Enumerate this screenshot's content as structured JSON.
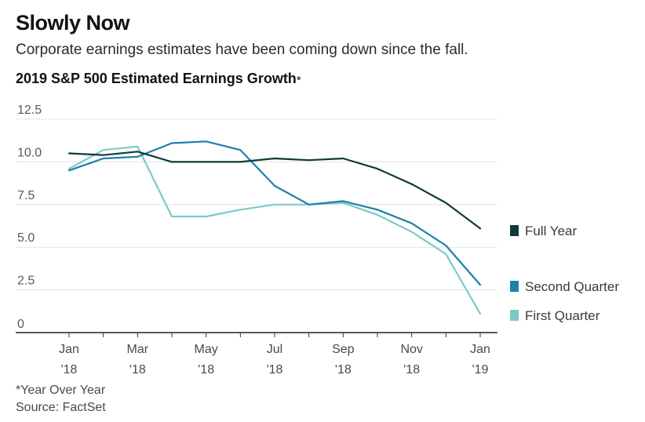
{
  "header": {
    "title": "Slowly Now",
    "subtitle": "Corporate earnings estimates have been coming down since the fall.",
    "chart_title": "2019 S&P 500 Estimated Earnings Growth",
    "chart_title_marker": "*"
  },
  "footer": {
    "note": "*Year Over Year",
    "source": "Source: FactSet"
  },
  "colors": {
    "full_year": "#0f3a3a",
    "second_quarter": "#1b82a8",
    "first_quarter": "#7ccac8"
  },
  "chart_data": {
    "type": "line",
    "title": "2019 S&P 500 Estimated Earnings Growth*",
    "xlabel": "",
    "ylabel": "",
    "ylim": [
      0,
      12.5
    ],
    "yticks": [
      {
        "value": 12.5,
        "label": "12.5"
      },
      {
        "value": 10.0,
        "label": "10.0"
      },
      {
        "value": 7.5,
        "label": "7.5"
      },
      {
        "value": 5.0,
        "label": "5.0"
      },
      {
        "value": 2.5,
        "label": "2.5"
      },
      {
        "value": 0,
        "label": "0"
      }
    ],
    "x": [
      "2018-01",
      "2018-02",
      "2018-03",
      "2018-04",
      "2018-05",
      "2018-06",
      "2018-07",
      "2018-08",
      "2018-09",
      "2018-10",
      "2018-11",
      "2018-12",
      "2019-01"
    ],
    "xticks": [
      {
        "x": "2018-01",
        "line1": "Jan",
        "line2": "'18"
      },
      {
        "x": "2018-03",
        "line1": "Mar",
        "line2": "'18"
      },
      {
        "x": "2018-05",
        "line1": "May",
        "line2": "'18"
      },
      {
        "x": "2018-07",
        "line1": "Jul",
        "line2": "'18"
      },
      {
        "x": "2018-09",
        "line1": "Sep",
        "line2": "'18"
      },
      {
        "x": "2018-11",
        "line1": "Nov",
        "line2": "'18"
      },
      {
        "x": "2019-01",
        "line1": "Jan",
        "line2": "'19"
      }
    ],
    "grid": true,
    "legend_placement": "right",
    "series": [
      {
        "key": "full_year",
        "name": "Full Year",
        "color": "#0f3a3a",
        "values": [
          10.5,
          10.4,
          10.6,
          10.0,
          10.0,
          10.0,
          10.2,
          10.1,
          10.2,
          9.6,
          8.7,
          7.6,
          6.1
        ]
      },
      {
        "key": "second_quarter",
        "name": "Second Quarter",
        "color": "#1b82a8",
        "values": [
          9.5,
          10.2,
          10.3,
          11.1,
          11.2,
          10.7,
          8.6,
          7.5,
          7.7,
          7.2,
          6.4,
          5.1,
          2.8
        ]
      },
      {
        "key": "first_quarter",
        "name": "First Quarter",
        "color": "#7ccac8",
        "values": [
          9.6,
          10.7,
          10.9,
          6.8,
          6.8,
          7.2,
          7.5,
          7.5,
          7.6,
          6.9,
          5.9,
          4.6,
          1.1
        ]
      }
    ]
  }
}
